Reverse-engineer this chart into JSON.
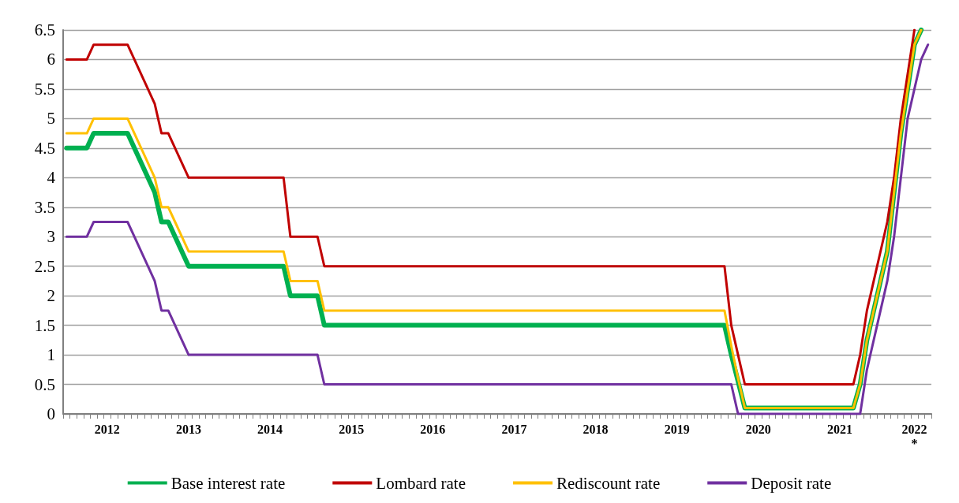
{
  "chart_data": {
    "type": "line",
    "categories": [
      null,
      null,
      null,
      null,
      null,
      null,
      "2012",
      null,
      null,
      null,
      null,
      null,
      null,
      null,
      null,
      null,
      null,
      null,
      "2013",
      null,
      null,
      null,
      null,
      null,
      null,
      null,
      null,
      null,
      null,
      null,
      "2014",
      null,
      null,
      null,
      null,
      null,
      null,
      null,
      null,
      null,
      null,
      null,
      "2015",
      null,
      null,
      null,
      null,
      null,
      null,
      null,
      null,
      null,
      null,
      null,
      "2016",
      null,
      null,
      null,
      null,
      null,
      null,
      null,
      null,
      null,
      null,
      null,
      "2017",
      null,
      null,
      null,
      null,
      null,
      null,
      null,
      null,
      null,
      null,
      null,
      "2018",
      null,
      null,
      null,
      null,
      null,
      null,
      null,
      null,
      null,
      null,
      null,
      "2019",
      null,
      null,
      null,
      null,
      null,
      null,
      null,
      null,
      null,
      null,
      null,
      "2020",
      null,
      null,
      null,
      null,
      null,
      null,
      null,
      null,
      null,
      null,
      null,
      "2021",
      null,
      null,
      null,
      null,
      null,
      null,
      null,
      null,
      null,
      null,
      "2022\n*",
      null,
      null
    ],
    "series": [
      {
        "name": "Base interest rate",
        "color": "#00b050",
        "values": [
          4.5,
          4.5,
          4.5,
          4.5,
          4.75,
          4.75,
          4.75,
          4.75,
          4.75,
          4.75,
          4.5,
          4.25,
          4,
          3.75,
          3.25,
          3.25,
          3,
          2.75,
          2.5,
          2.5,
          2.5,
          2.5,
          2.5,
          2.5,
          2.5,
          2.5,
          2.5,
          2.5,
          2.5,
          2.5,
          2.5,
          2.5,
          2.5,
          2,
          2,
          2,
          2,
          2,
          1.5,
          1.5,
          1.5,
          1.5,
          1.5,
          1.5,
          1.5,
          1.5,
          1.5,
          1.5,
          1.5,
          1.5,
          1.5,
          1.5,
          1.5,
          1.5,
          1.5,
          1.5,
          1.5,
          1.5,
          1.5,
          1.5,
          1.5,
          1.5,
          1.5,
          1.5,
          1.5,
          1.5,
          1.5,
          1.5,
          1.5,
          1.5,
          1.5,
          1.5,
          1.5,
          1.5,
          1.5,
          1.5,
          1.5,
          1.5,
          1.5,
          1.5,
          1.5,
          1.5,
          1.5,
          1.5,
          1.5,
          1.5,
          1.5,
          1.5,
          1.5,
          1.5,
          1.5,
          1.5,
          1.5,
          1.5,
          1.5,
          1.5,
          1.5,
          1.5,
          1,
          0.55,
          0.1,
          0.1,
          0.1,
          0.1,
          0.1,
          0.1,
          0.1,
          0.1,
          0.1,
          0.1,
          0.1,
          0.1,
          0.1,
          0.1,
          0.1,
          0.1,
          0.1,
          0.5,
          1.25,
          1.75,
          2.25,
          2.75,
          3.75,
          4.75,
          5.5,
          6.25,
          6.5,
          null
        ]
      },
      {
        "name": "Lombard rate",
        "color": "#c00000",
        "values": [
          6,
          6,
          6,
          6,
          6.25,
          6.25,
          6.25,
          6.25,
          6.25,
          6.25,
          6,
          5.75,
          5.5,
          5.25,
          4.75,
          4.75,
          4.5,
          4.25,
          4,
          4,
          4,
          4,
          4,
          4,
          4,
          4,
          4,
          4,
          4,
          4,
          4,
          4,
          4,
          3,
          3,
          3,
          3,
          3,
          2.5,
          2.5,
          2.5,
          2.5,
          2.5,
          2.5,
          2.5,
          2.5,
          2.5,
          2.5,
          2.5,
          2.5,
          2.5,
          2.5,
          2.5,
          2.5,
          2.5,
          2.5,
          2.5,
          2.5,
          2.5,
          2.5,
          2.5,
          2.5,
          2.5,
          2.5,
          2.5,
          2.5,
          2.5,
          2.5,
          2.5,
          2.5,
          2.5,
          2.5,
          2.5,
          2.5,
          2.5,
          2.5,
          2.5,
          2.5,
          2.5,
          2.5,
          2.5,
          2.5,
          2.5,
          2.5,
          2.5,
          2.5,
          2.5,
          2.5,
          2.5,
          2.5,
          2.5,
          2.5,
          2.5,
          2.5,
          2.5,
          2.5,
          2.5,
          2.5,
          1.5,
          1,
          0.5,
          0.5,
          0.5,
          0.5,
          0.5,
          0.5,
          0.5,
          0.5,
          0.5,
          0.5,
          0.5,
          0.5,
          0.5,
          0.5,
          0.5,
          0.5,
          0.5,
          1,
          1.75,
          2.25,
          2.75,
          3.25,
          4,
          5,
          5.75,
          6.5,
          null,
          null
        ]
      },
      {
        "name": "Rediscount rate",
        "color": "#ffc000",
        "values": [
          4.75,
          4.75,
          4.75,
          4.75,
          5,
          5,
          5,
          5,
          5,
          5,
          4.75,
          4.5,
          4.25,
          4,
          3.5,
          3.5,
          3.25,
          3,
          2.75,
          2.75,
          2.75,
          2.75,
          2.75,
          2.75,
          2.75,
          2.75,
          2.75,
          2.75,
          2.75,
          2.75,
          2.75,
          2.75,
          2.75,
          2.25,
          2.25,
          2.25,
          2.25,
          2.25,
          1.75,
          1.75,
          1.75,
          1.75,
          1.75,
          1.75,
          1.75,
          1.75,
          1.75,
          1.75,
          1.75,
          1.75,
          1.75,
          1.75,
          1.75,
          1.75,
          1.75,
          1.75,
          1.75,
          1.75,
          1.75,
          1.75,
          1.75,
          1.75,
          1.75,
          1.75,
          1.75,
          1.75,
          1.75,
          1.75,
          1.75,
          1.75,
          1.75,
          1.75,
          1.75,
          1.75,
          1.75,
          1.75,
          1.75,
          1.75,
          1.75,
          1.75,
          1.75,
          1.75,
          1.75,
          1.75,
          1.75,
          1.75,
          1.75,
          1.75,
          1.75,
          1.75,
          1.75,
          1.75,
          1.75,
          1.75,
          1.75,
          1.75,
          1.75,
          1.75,
          1.15,
          0.6,
          0.1,
          0.1,
          0.1,
          0.1,
          0.1,
          0.1,
          0.1,
          0.1,
          0.1,
          0.1,
          0.1,
          0.1,
          0.1,
          0.1,
          0.1,
          0.1,
          0.1,
          0.5,
          1.25,
          1.75,
          2.25,
          2.75,
          3.75,
          4.75,
          5.5,
          6.25,
          6.5,
          null
        ]
      },
      {
        "name": "Deposit rate",
        "color": "#7030a0",
        "values": [
          3,
          3,
          3,
          3,
          3.25,
          3.25,
          3.25,
          3.25,
          3.25,
          3.25,
          3,
          2.75,
          2.5,
          2.25,
          1.75,
          1.75,
          1.5,
          1.25,
          1,
          1,
          1,
          1,
          1,
          1,
          1,
          1,
          1,
          1,
          1,
          1,
          1,
          1,
          1,
          1,
          1,
          1,
          1,
          1,
          0.5,
          0.5,
          0.5,
          0.5,
          0.5,
          0.5,
          0.5,
          0.5,
          0.5,
          0.5,
          0.5,
          0.5,
          0.5,
          0.5,
          0.5,
          0.5,
          0.5,
          0.5,
          0.5,
          0.5,
          0.5,
          0.5,
          0.5,
          0.5,
          0.5,
          0.5,
          0.5,
          0.5,
          0.5,
          0.5,
          0.5,
          0.5,
          0.5,
          0.5,
          0.5,
          0.5,
          0.5,
          0.5,
          0.5,
          0.5,
          0.5,
          0.5,
          0.5,
          0.5,
          0.5,
          0.5,
          0.5,
          0.5,
          0.5,
          0.5,
          0.5,
          0.5,
          0.5,
          0.5,
          0.5,
          0.5,
          0.5,
          0.5,
          0.5,
          0.5,
          0.5,
          0,
          0,
          0,
          0,
          0,
          0,
          0,
          0,
          0,
          0,
          0,
          0,
          0,
          0,
          0,
          0,
          0,
          0,
          0,
          0.75,
          1.25,
          1.75,
          2.25,
          3,
          4,
          5,
          5.5,
          6,
          6.25
        ]
      }
    ],
    "ylim": [
      0,
      6.5
    ],
    "yticks": [
      0,
      0.5,
      1,
      1.5,
      2,
      2.5,
      3,
      3.5,
      4,
      4.5,
      5,
      5.5,
      6,
      6.5
    ],
    "grid": "y",
    "legend": "bottom",
    "marker": "none",
    "line_style": "solid"
  }
}
